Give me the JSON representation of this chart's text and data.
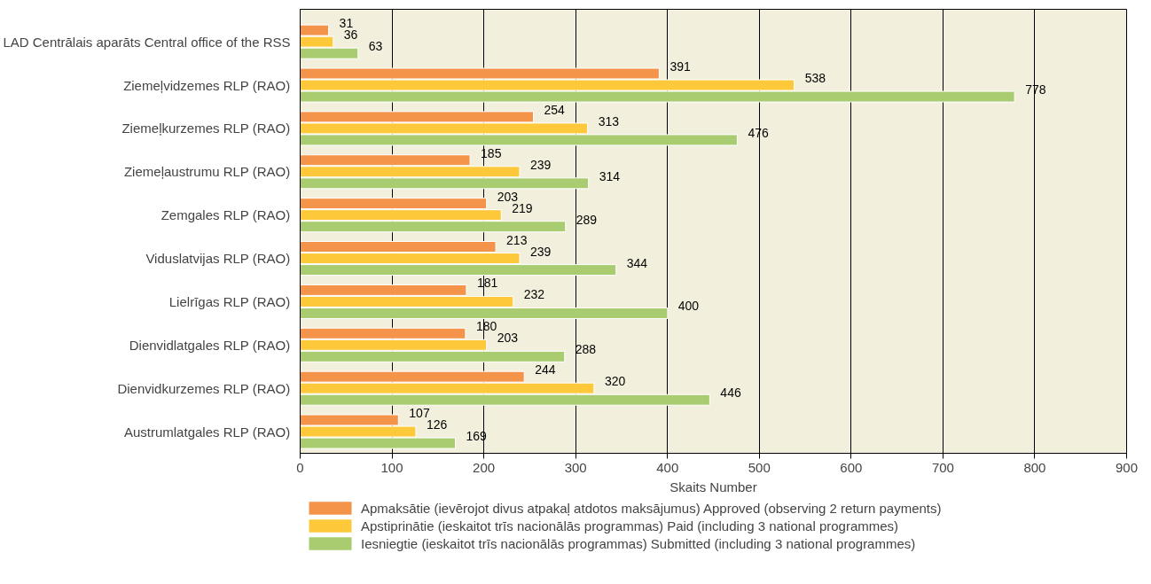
{
  "chart_data": {
    "type": "bar",
    "orientation": "horizontal",
    "xlabel": "Skaits Number",
    "categories": [
      "LAD Centrālais aparāts Central office of the RSS",
      "Ziemeļvidzemes RLP (RAO)",
      "Ziemeļkurzemes RLP (RAO)",
      "Ziemeļaustrumu RLP (RAO)",
      "Zemgales RLP (RAO)",
      "Viduslatvijas RLP (RAO)",
      "Lielrīgas RLP (RAO)",
      "Dienvidlatgales RLP (RAO)",
      "Dienvidkurzemes RLP (RAO)",
      "Austrumlatgales RLP (RAO)"
    ],
    "series": [
      {
        "name": "Apmaksātie (ievērojot divus atpakaļ atdotos maksājumus) Approved (observing 2 return payments)",
        "color": "#f4934a",
        "values": [
          31,
          391,
          254,
          185,
          203,
          213,
          181,
          180,
          244,
          107
        ]
      },
      {
        "name": "Apstiprinātie (ieskaitot trīs nacionālās programmas) Paid (including 3 national programmes)",
        "color": "#fdc93b",
        "values": [
          36,
          538,
          313,
          239,
          219,
          239,
          232,
          203,
          320,
          126
        ]
      },
      {
        "name": "Iesniegtie (ieskaitot trīs nacionālās programmas) Submitted (including 3 national programmes)",
        "color": "#a8cc6f",
        "values": [
          63,
          778,
          476,
          314,
          289,
          344,
          400,
          288,
          446,
          169
        ]
      }
    ],
    "xlim": [
      0,
      900
    ],
    "xticks": [
      0,
      100,
      200,
      300,
      400,
      500,
      600,
      700,
      800,
      900
    ],
    "grid": "x",
    "legend": "bottom",
    "data_labels": true
  }
}
